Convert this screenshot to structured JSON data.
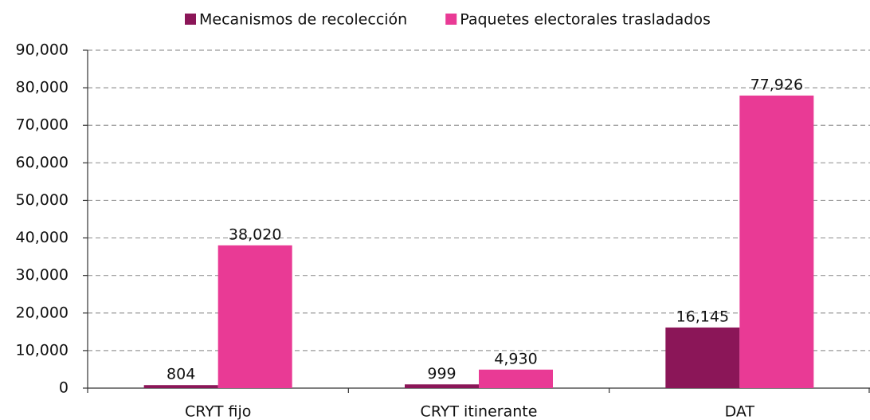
{
  "chart_data": {
    "type": "bar",
    "categories": [
      "CRYT fijo",
      "CRYT itinerante",
      "DAT"
    ],
    "series": [
      {
        "name": "Mecanismos de recolección",
        "color": "#8b1658",
        "values": [
          804,
          999,
          16145
        ],
        "value_labels": [
          "804",
          "999",
          "16,145"
        ]
      },
      {
        "name": "Paquetes electorales trasladados",
        "color": "#e93a95",
        "values": [
          38020,
          4930,
          77926
        ],
        "value_labels": [
          "38,020",
          "4,930",
          "77,926"
        ]
      }
    ],
    "ylim": [
      0,
      90000
    ],
    "yticks": [
      0,
      {
        "value": 10000,
        "label": "10,000"
      },
      {
        "value": 20000,
        "label": "20,000"
      },
      {
        "value": 30000,
        "label": "30,000"
      },
      {
        "value": 40000,
        "label": "40,000"
      },
      {
        "value": 50000,
        "label": "50,000"
      },
      {
        "value": 60000,
        "label": "60,000"
      },
      {
        "value": 70000,
        "label": "70,000"
      },
      {
        "value": 80000,
        "label": "80,000"
      },
      {
        "value": 90000,
        "label": "90,000"
      }
    ],
    "grid": true,
    "legend": "top"
  }
}
